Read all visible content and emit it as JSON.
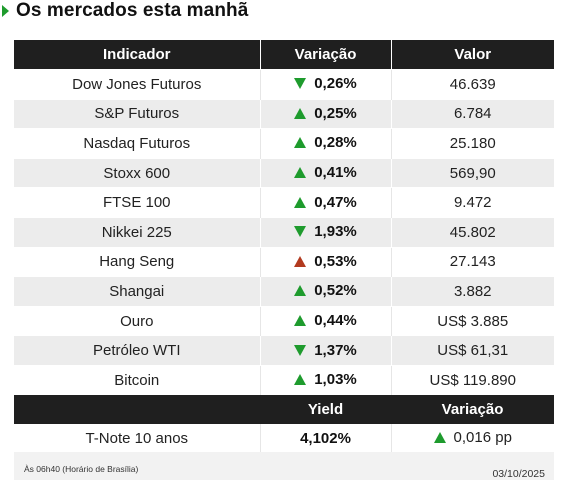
{
  "headline": {
    "title": "Os mercados esta manhã"
  },
  "colors": {
    "up": "#1e9b2d",
    "down": "#1e9b2d",
    "up_alert": "#b23a1f",
    "header_bg": "#1f1f1f"
  },
  "table": {
    "headers": [
      "Indicador",
      "Variação",
      "Valor"
    ],
    "rows": [
      {
        "name": "Dow Jones Futuros",
        "direction": "down",
        "change": "0,26%",
        "value": "46.639"
      },
      {
        "name": "S&P Futuros",
        "direction": "up",
        "change": "0,25%",
        "value": "6.784"
      },
      {
        "name": "Nasdaq Futuros",
        "direction": "up",
        "change": "0,28%",
        "value": "25.180"
      },
      {
        "name": "Stoxx 600",
        "direction": "up",
        "change": "0,41%",
        "value": "569,90"
      },
      {
        "name": "FTSE 100",
        "direction": "up",
        "change": "0,47%",
        "value": "9.472"
      },
      {
        "name": "Nikkei 225",
        "direction": "down",
        "change": "1,93%",
        "value": "45.802"
      },
      {
        "name": "Hang Seng",
        "direction": "up-red",
        "change": "0,53%",
        "value": "27.143"
      },
      {
        "name": "Shangai",
        "direction": "up",
        "change": "0,52%",
        "value": "3.882"
      },
      {
        "name": "Ouro",
        "direction": "up",
        "change": "0,44%",
        "value": "US$ 3.885"
      },
      {
        "name": "Petróleo WTI",
        "direction": "down",
        "change": "1,37%",
        "value": "US$ 61,31"
      },
      {
        "name": "Bitcoin",
        "direction": "up",
        "change": "1,03%",
        "value": "US$ 119.890"
      }
    ]
  },
  "yield_table": {
    "headers": [
      "",
      "Yield",
      "Variação"
    ],
    "row": {
      "name": "T-Note 10 anos",
      "yield": "4,102%",
      "direction": "up",
      "change": "0,016 pp"
    }
  },
  "footer": {
    "note": "Às 06h40 (Horário de Brasília)",
    "date": "03/10/2025"
  }
}
